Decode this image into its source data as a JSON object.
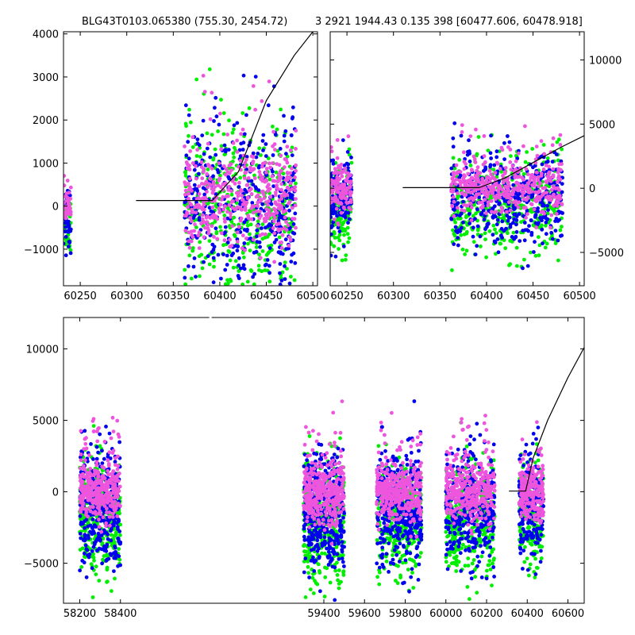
{
  "header": {
    "left_title": "BLG43T0103.065380 (755.30, 2454.72)",
    "right_title": "3 2921 1944.43 0.135 398 [60477.606, 60478.918]"
  },
  "colors": {
    "series_a": "#00ee00",
    "series_b": "#0000ee",
    "series_c": "#ee55dd",
    "model": "#000000"
  },
  "chart_data": [
    {
      "id": "top-left",
      "type": "scatter",
      "title": "BLG43T0103.065380 (755.30, 2454.72)",
      "xlim": [
        60232,
        60505
      ],
      "ylim": [
        -1850,
        4050
      ],
      "xticks": [
        60250,
        60300,
        60350,
        60400,
        60450,
        60500
      ],
      "yticks": [
        -1000,
        0,
        1000,
        2000,
        3000,
        4000
      ],
      "ytick_side": "left",
      "model": [
        [
          60310,
          130
        ],
        [
          60392,
          130
        ],
        [
          60420,
          800
        ],
        [
          60450,
          2450
        ],
        [
          60480,
          3500
        ],
        [
          60500,
          4050
        ]
      ],
      "clusters": [
        {
          "x": [
            60232,
            60240
          ],
          "y": -200,
          "spread": 500,
          "n": 40
        },
        {
          "x": [
            60362,
            60482
          ],
          "y": 400,
          "spread": 1500,
          "n": 420
        }
      ]
    },
    {
      "id": "top-right",
      "type": "scatter",
      "title": "3 2921 1944.43 0.135 398 [60477.606, 60478.918]",
      "xlim": [
        60232,
        60505
      ],
      "ylim": [
        -7600,
        12200
      ],
      "xticks": [
        60250,
        60300,
        60350,
        60400,
        60450,
        60500
      ],
      "yticks": [
        -5000,
        0,
        5000,
        10000
      ],
      "ytick_side": "right",
      "model": [
        [
          60310,
          50
        ],
        [
          60392,
          50
        ],
        [
          60420,
          800
        ],
        [
          60450,
          2000
        ],
        [
          60480,
          3200
        ],
        [
          60505,
          4100
        ]
      ],
      "clusters": [
        {
          "x": [
            60232,
            60255
          ],
          "y": -500,
          "spread": 2500,
          "n": 120
        },
        {
          "x": [
            60362,
            60482
          ],
          "y": -200,
          "spread": 2800,
          "n": 420
        }
      ]
    },
    {
      "id": "bottom",
      "type": "scatter",
      "title": "",
      "xlim": [
        58120,
        60680
      ],
      "ylim": [
        -7800,
        12200
      ],
      "xticks": [
        58200,
        58400,
        59400,
        59600,
        59800,
        60000,
        60200,
        60400,
        60600
      ],
      "yticks": [
        -5000,
        0,
        5000,
        10000
      ],
      "ytick_side": "left",
      "break_gap": [
        58425,
        59260
      ],
      "model": [
        [
          60310,
          50
        ],
        [
          60392,
          50
        ],
        [
          60430,
          2400
        ],
        [
          60500,
          5000
        ],
        [
          60600,
          8000
        ],
        [
          60680,
          10100
        ]
      ],
      "clusters": [
        {
          "x": [
            58200,
            58400
          ],
          "y": -500,
          "spread": 2800,
          "n": 340
        },
        {
          "x": [
            59300,
            59500
          ],
          "y": -800,
          "spread": 3000,
          "n": 380
        },
        {
          "x": [
            59660,
            59880
          ],
          "y": -600,
          "spread": 2800,
          "n": 360
        },
        {
          "x": [
            60000,
            60240
          ],
          "y": -700,
          "spread": 2900,
          "n": 360
        },
        {
          "x": [
            60360,
            60480
          ],
          "y": -300,
          "spread": 2600,
          "n": 220
        }
      ]
    }
  ]
}
